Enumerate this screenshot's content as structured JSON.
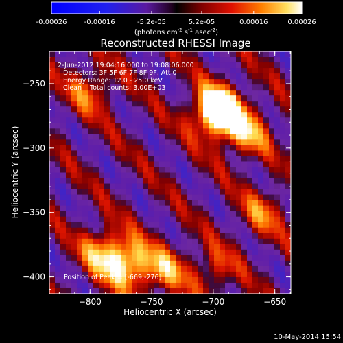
{
  "colorbar": {
    "ticks": [
      "-0.00026",
      "-0.00016",
      "-5.2e-05",
      "5.2e-05",
      "0.00016",
      "0.00026"
    ],
    "tick_values": [
      -0.00026,
      -0.00016,
      -5.2e-05,
      5.2e-05,
      0.00016,
      0.00026
    ],
    "range": [
      -0.00026,
      0.00026
    ],
    "units": {
      "prefix": "(photons cm",
      "sup1": "-2",
      "mid1": " s",
      "sup2": "-1",
      "mid2": " asec",
      "sup3": "-2",
      "suffix": ")"
    }
  },
  "chart_data": {
    "type": "heatmap",
    "title": "Reconstructed RHESSI Image",
    "xlabel": "Heliocentric X (arcsec)",
    "ylabel": "Heliocentric Y (arcsec)",
    "xlim": [
      -833,
      -637
    ],
    "ylim": [
      -413,
      -225
    ],
    "xticks": [
      -800,
      -750,
      -700,
      -650
    ],
    "yticks": [
      -250,
      -300,
      -350,
      -400
    ],
    "xtick_labels": [
      "−800",
      "−750",
      "−700",
      "−650"
    ],
    "ytick_labels": [
      "−250",
      "−300",
      "−350",
      "−400"
    ],
    "annotations": [
      "2-Jun-2012 19:04:16.000 to 19:08:06.000",
      "Detectors: 3F 5F 6F 7F 8F 9F, Att 0",
      "Energy Range: 12.0 - 25.0 keV",
      "Clean    Total counts: 3.00E+03"
    ],
    "peak_label": "Position of Peak = [-669,-276]",
    "peak": [
      -669,
      -276
    ],
    "sources": [
      {
        "x": -700,
        "y": -270,
        "amplitude": 0.00026
      },
      {
        "x": -690,
        "y": -275,
        "amplitude": 0.00022
      },
      {
        "x": -672,
        "y": -290,
        "amplitude": 0.00016
      },
      {
        "x": -770,
        "y": -390,
        "amplitude": 0.00026
      },
      {
        "x": -790,
        "y": -380,
        "amplitude": 0.00018
      },
      {
        "x": -740,
        "y": -395,
        "amplitude": 0.00017
      },
      {
        "x": -800,
        "y": -255,
        "amplitude": 0.00014
      },
      {
        "x": -660,
        "y": -350,
        "amplitude": 0.00013
      },
      {
        "x": -700,
        "y": -395,
        "amplitude": 0.00012
      }
    ]
  },
  "footer": {
    "date": "10-May-2014 15:54"
  }
}
